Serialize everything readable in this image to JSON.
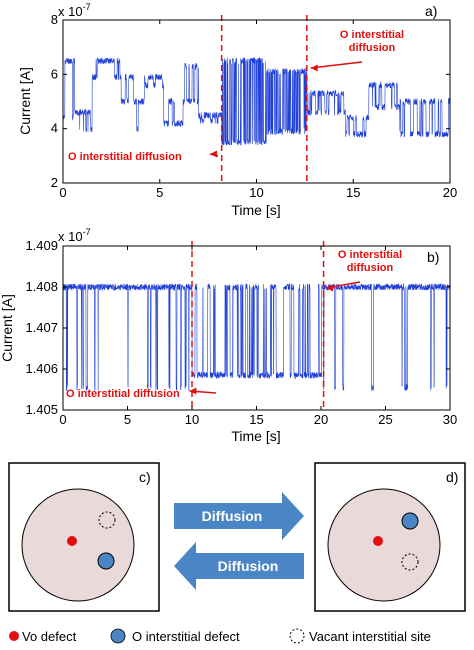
{
  "chart_data": [
    {
      "id": "a",
      "type": "line",
      "panel_label": "a)",
      "xlabel": "Time [s]",
      "ylabel": "Current [A]",
      "y_exponent_label": "x 10",
      "y_exponent_power": "-7",
      "xlim": [
        0,
        20
      ],
      "ylim": [
        2,
        8
      ],
      "xticks": [
        "0",
        "5",
        "10",
        "15",
        "20"
      ],
      "yticks": [
        "2",
        "4",
        "6",
        "8"
      ],
      "grid": false,
      "series_color": "#1f3fd6",
      "annotation_color": "#e01010",
      "vlines": [
        8.2,
        12.6
      ],
      "annotations": [
        {
          "text": "O interstitial diffusion",
          "lines": [
            "O interstitial diffusion"
          ],
          "arrow_to_x": 7.6
        },
        {
          "text": "O interstitial diffusion",
          "lines": [
            "O interstitial",
            "diffusion"
          ],
          "arrow_to_x": 12.8
        }
      ],
      "segments": [
        {
          "t0": 0.0,
          "t1": 0.6,
          "levels": [
            4.4,
            6.5
          ]
        },
        {
          "t0": 0.6,
          "t1": 1.5,
          "levels": [
            4.0,
            4.6
          ]
        },
        {
          "t0": 1.5,
          "t1": 3.0,
          "levels": [
            5.9,
            6.5
          ]
        },
        {
          "t0": 3.0,
          "t1": 3.8,
          "levels": [
            5.0,
            5.9
          ]
        },
        {
          "t0": 3.8,
          "t1": 4.2,
          "levels": [
            4.0,
            5.0
          ]
        },
        {
          "t0": 4.2,
          "t1": 5.2,
          "levels": [
            5.6,
            5.9
          ]
        },
        {
          "t0": 5.2,
          "t1": 6.2,
          "levels": [
            4.2,
            5.0
          ]
        },
        {
          "t0": 6.2,
          "t1": 7.0,
          "levels": [
            5.0,
            6.3
          ]
        },
        {
          "t0": 7.0,
          "t1": 8.2,
          "levels": [
            4.3,
            4.5
          ]
        },
        {
          "t0": 8.2,
          "t1": 10.5,
          "levels": [
            3.5,
            6.5
          ]
        },
        {
          "t0": 10.5,
          "t1": 12.6,
          "levels": [
            3.9,
            6.1
          ]
        },
        {
          "t0": 12.6,
          "t1": 14.6,
          "levels": [
            4.6,
            5.3
          ]
        },
        {
          "t0": 14.6,
          "t1": 15.8,
          "levels": [
            3.8,
            4.4
          ]
        },
        {
          "t0": 15.8,
          "t1": 17.4,
          "levels": [
            4.8,
            5.6
          ]
        },
        {
          "t0": 17.4,
          "t1": 20.0,
          "levels": [
            3.8,
            5.0
          ]
        }
      ]
    },
    {
      "id": "b",
      "type": "line",
      "panel_label": "b)",
      "xlabel": "Time [s]",
      "ylabel": "Current [A]",
      "y_exponent_label": "x 10",
      "y_exponent_power": "-7",
      "xlim": [
        0,
        30
      ],
      "ylim": [
        1.405,
        1.409
      ],
      "xticks": [
        "0",
        "5",
        "10",
        "15",
        "20",
        "25",
        "30"
      ],
      "yticks": [
        "1.405",
        "1.406",
        "1.407",
        "1.408",
        "1.409"
      ],
      "grid": false,
      "series_color": "#1f3fd6",
      "annotation_color": "#e01010",
      "vlines": [
        10.0,
        20.2
      ],
      "annotations": [
        {
          "text": "O interstitial diffusion",
          "lines": [
            "O interstitial diffusion"
          ],
          "arrow_to_x": 9.8
        },
        {
          "text": "O interstitial diffusion",
          "lines": [
            "O interstitial",
            "diffusion"
          ],
          "arrow_to_x": 20.4
        }
      ],
      "segments": [
        {
          "t0": 0.0,
          "t1": 10.0,
          "levels": [
            1.408,
            1.40555
          ],
          "dwell": "high"
        },
        {
          "t0": 10.0,
          "t1": 20.2,
          "levels": [
            1.40585,
            1.408
          ],
          "dwell": "low"
        },
        {
          "t0": 20.2,
          "t1": 30.0,
          "levels": [
            1.408,
            1.40555
          ],
          "dwell": "high"
        }
      ]
    }
  ],
  "schematic": {
    "panel_c_label": "c)",
    "panel_d_label": "d)",
    "arrow_forward_label": "Diffusion",
    "arrow_backward_label": "Diffusion",
    "arrow_color": "#4a86c5",
    "circle_fill": "#ead9d9",
    "vo_color": "#e01010",
    "oi_color": "#4a86c5"
  },
  "legend": {
    "vo_label": "Vo defect",
    "oi_label": "O interstitial defect",
    "vacant_label": "Vacant interstitial site"
  }
}
